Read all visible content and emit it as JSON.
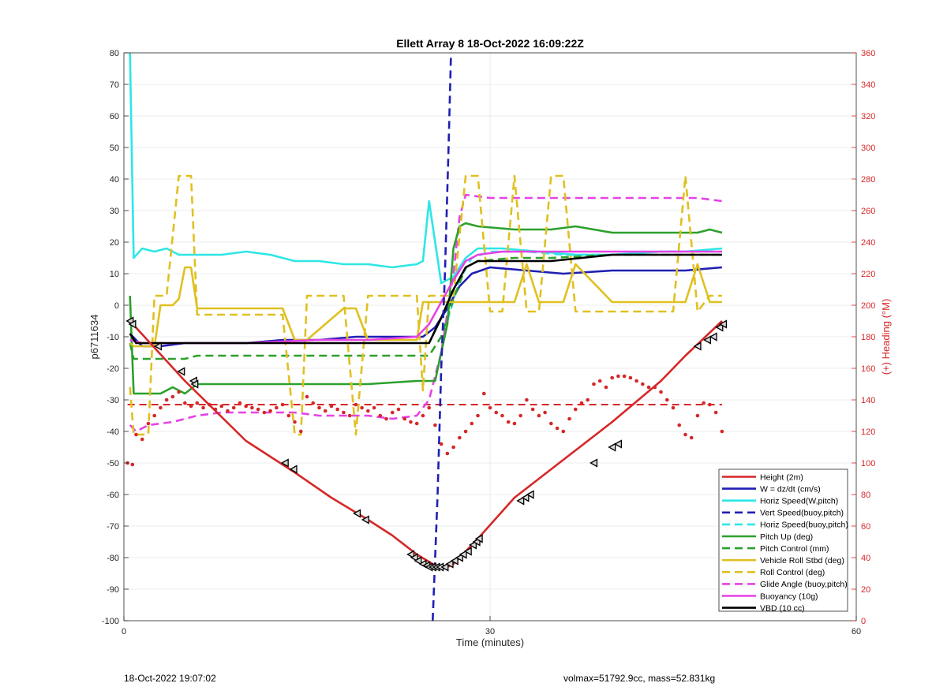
{
  "chart_data": {
    "type": "line",
    "title": "Ellett Array 8 18-Oct-2022 16:09:22Z",
    "xlabel": "Time (minutes)",
    "ylabel": "p6711634",
    "y2label": "(+) Heading (°M)",
    "xlim": [
      0,
      60
    ],
    "ylim": [
      -100,
      80
    ],
    "y2lim": [
      0,
      360
    ],
    "xticks": [
      "0",
      "30",
      "60"
    ],
    "yticks": [
      "80",
      "70",
      "60",
      "50",
      "40",
      "30",
      "20",
      "10",
      "0",
      "-10",
      "-20",
      "-30",
      "-40",
      "-50",
      "-60",
      "-70",
      "-80",
      "-90",
      "-100"
    ],
    "y2ticks": [
      "360",
      "340",
      "320",
      "300",
      "280",
      "260",
      "240",
      "220",
      "200",
      "180",
      "160",
      "140",
      "120",
      "100",
      "80",
      "60",
      "40",
      "20",
      "0"
    ],
    "grid": true,
    "legend_position": "bottom-right",
    "series": [
      {
        "name": "Height (2m)",
        "color": "#d62728",
        "style": "solid",
        "x": [
          0.5,
          5,
          10,
          14,
          17,
          20,
          22,
          24,
          25.5,
          26.5,
          27,
          27.5,
          28,
          29,
          32,
          36,
          40,
          44,
          46,
          49
        ],
        "y": [
          -5,
          -24,
          -43,
          -53,
          -61,
          -68,
          -73,
          -79,
          -82.5,
          -83,
          -82,
          -80,
          -78,
          -74,
          -61,
          -49,
          -37,
          -24,
          -16,
          -5
        ],
        "markers_x": [
          0.5,
          0.7,
          2.8,
          4.7,
          5.7,
          5.8,
          13.2,
          13.9,
          19.1,
          19.8,
          23.5,
          23.8,
          24.1,
          24.5,
          24.8,
          25.0,
          25.3,
          25.6,
          25.9,
          26.3,
          26.7,
          27.1,
          27.5,
          27.8,
          28.2,
          28.6,
          28.9,
          29.1,
          32.5,
          32.9,
          33.3,
          38.5,
          40.0,
          40.5,
          47.0,
          47.8,
          48.3,
          48.8,
          49.1
        ],
        "markers_y": [
          -5,
          -6,
          -13,
          -21,
          -24,
          -25,
          -50,
          -52,
          -66,
          -68,
          -79,
          -80,
          -81,
          -82,
          -82.5,
          -83,
          -83,
          -83,
          -83,
          -83,
          -82,
          -81,
          -80,
          -79,
          -78,
          -76,
          -75,
          -74,
          -62,
          -61,
          -60,
          -50,
          -45,
          -44,
          -13,
          -11,
          -10,
          -7,
          -6
        ]
      },
      {
        "name": "W = dz/dt (cm/s)",
        "color": "#1f1fb4",
        "style": "solid",
        "x": [
          0.5,
          1.5,
          3,
          5,
          7,
          10,
          13,
          16,
          19,
          22,
          24.5,
          25.5,
          26.5,
          27.5,
          28.5,
          30,
          33,
          36,
          40,
          44,
          46,
          49
        ],
        "y": [
          -9,
          -13,
          -13,
          -12,
          -12,
          -12,
          -11,
          -11,
          -10,
          -10,
          -10,
          -7,
          -1,
          6,
          10,
          12,
          11,
          10,
          11,
          11,
          11,
          12
        ]
      },
      {
        "name": "Horiz Speed(W,pitch)",
        "color": "#2ee6e6",
        "style": "solid",
        "x": [
          0.5,
          0.8,
          1.5,
          2.5,
          3.5,
          4.5,
          6,
          8,
          10,
          12,
          14,
          16,
          18,
          20,
          22,
          24,
          24.5,
          25,
          25.5,
          26,
          27,
          28,
          29,
          31,
          34,
          37,
          40,
          44,
          46,
          49
        ],
        "y": [
          80,
          15,
          18,
          17,
          18,
          16,
          16,
          16,
          17,
          16,
          14,
          14,
          13,
          13,
          12,
          13,
          14,
          33,
          20,
          7,
          9,
          15,
          18,
          18,
          17,
          16,
          16,
          17,
          17,
          18
        ]
      },
      {
        "name": "Vert Speed(buoy,pitch)",
        "color": "#1f1fb4",
        "style": "dashed",
        "x": [
          25.3,
          25.7,
          26.0,
          26.3,
          26.6,
          26.8
        ],
        "y": [
          -100,
          -60,
          -20,
          10,
          50,
          80
        ]
      },
      {
        "name": "Horiz Speed(buoy,pitch)",
        "color": "#2ee6e6",
        "style": "dashed",
        "x": [
          26.5,
          27.5,
          28.5,
          30,
          33,
          36,
          40,
          44,
          46,
          49
        ],
        "y": [
          -5,
          8,
          15,
          17,
          17,
          16,
          16,
          17,
          17,
          17
        ]
      },
      {
        "name": "Pitch Up (deg)",
        "color": "#2ca02c",
        "style": "solid",
        "x": [
          0.5,
          0.8,
          1.5,
          3,
          4,
          5,
          6,
          8,
          12,
          16,
          20,
          24,
          24.5,
          25.5,
          26.5,
          27,
          27.5,
          28,
          29,
          32,
          35,
          37,
          40,
          44,
          47,
          48,
          49
        ],
        "y": [
          3,
          -28,
          -28,
          -28,
          -26,
          -28,
          -25,
          -25,
          -25,
          -25,
          -25,
          -24,
          -24,
          -24,
          -6,
          18,
          25,
          26,
          25,
          24,
          24,
          25,
          23,
          23,
          23,
          24,
          23
        ]
      },
      {
        "name": "Pitch Control (mm)",
        "color": "#2ca02c",
        "style": "dashed",
        "x": [
          0.5,
          0.8,
          4,
          5,
          6,
          24,
          25,
          26,
          27,
          28,
          29,
          32,
          35,
          40,
          44,
          47,
          49
        ],
        "y": [
          -12,
          -17,
          -17,
          -17,
          -16,
          -16,
          -16,
          -10,
          2,
          12,
          14,
          15,
          15,
          16,
          16,
          16,
          16
        ]
      },
      {
        "name": "Vehicle Roll Stbd (deg)",
        "color": "#e0c020",
        "style": "solid",
        "x": [
          0.5,
          0.8,
          2.5,
          3,
          4,
          4.5,
          5,
          5.5,
          6,
          10,
          13,
          14,
          15,
          18,
          19,
          20,
          23,
          24,
          24.5,
          25,
          26,
          27,
          28,
          29,
          30,
          32,
          33,
          34,
          36,
          37,
          40,
          44,
          45,
          46,
          47,
          48,
          49
        ],
        "y": [
          -12,
          -13,
          -13,
          0,
          0,
          2,
          12,
          12,
          -1,
          -1,
          -1,
          -11,
          -11,
          -1,
          -1,
          -11,
          -11,
          -11,
          1,
          1,
          1,
          1,
          1,
          1,
          1,
          1,
          13,
          1,
          1,
          13,
          1,
          1,
          1,
          1,
          13,
          1,
          1
        ]
      },
      {
        "name": "Roll Control (deg)",
        "color": "#e0c020",
        "style": "dashed",
        "x": [
          0.5,
          0.8,
          2,
          2.5,
          3.5,
          4.5,
          5,
          5.5,
          6,
          10,
          13,
          14,
          14.5,
          15,
          18,
          19,
          20,
          24,
          24.5,
          25,
          26,
          27,
          28,
          29,
          30,
          31,
          32,
          33,
          34,
          35,
          36,
          37,
          40,
          44,
          45,
          46,
          47,
          48,
          49
        ],
        "y": [
          -26,
          -41,
          -41,
          3,
          3,
          41,
          41,
          41,
          -3,
          -3,
          -3,
          -41,
          -41,
          3,
          3,
          -41,
          3,
          3,
          -27,
          3,
          3,
          3,
          41,
          41,
          -2,
          -2,
          41,
          -2,
          -2,
          41,
          41,
          -2,
          -2,
          -2,
          -2,
          41,
          -2,
          3,
          3
        ]
      },
      {
        "name": "Glide Angle (buoy,pitch)",
        "color": "#e642e6",
        "style": "dashed",
        "x": [
          0.5,
          1,
          2,
          4,
          6,
          8,
          10,
          12,
          14,
          16,
          18,
          20,
          22,
          24,
          25,
          26,
          27,
          27.5,
          28,
          30,
          33,
          35,
          37,
          40,
          44,
          47,
          49
        ],
        "y": [
          -38,
          -40,
          -38,
          -37,
          -35,
          -34,
          -34,
          -34,
          -34,
          -35,
          -35,
          -35,
          -36,
          -35,
          -30,
          -15,
          10,
          28,
          35,
          34,
          34,
          34,
          34,
          34,
          34,
          34,
          33
        ]
      },
      {
        "name": "Buoyancy (10g)",
        "color": "#e642e6",
        "style": "solid",
        "x": [
          0.5,
          1.5,
          5,
          10,
          16,
          20,
          24,
          25,
          26,
          27,
          28,
          29,
          31,
          35,
          40,
          44,
          47,
          49
        ],
        "y": [
          -11,
          -12,
          -12,
          -12,
          -11,
          -11,
          -10,
          -6,
          1,
          8,
          14,
          16,
          17,
          17,
          17,
          17,
          17,
          17
        ]
      },
      {
        "name": "VBD (10 cc)",
        "color": "#000000",
        "style": "solid",
        "x": [
          0.5,
          1,
          2,
          5,
          10,
          16,
          20,
          24,
          25,
          26,
          27,
          28,
          29,
          31,
          35,
          40,
          44,
          47,
          49
        ],
        "y": [
          -9,
          -12,
          -12,
          -12,
          -12,
          -12,
          -12,
          -12,
          -12,
          -4,
          5,
          12,
          14,
          14,
          14,
          16,
          16,
          16,
          16
        ]
      }
    ],
    "heading": {
      "color": "#d62728",
      "mean": 137,
      "x": [
        0.3,
        0.7,
        1,
        1.5,
        2,
        2.5,
        3,
        3.5,
        4,
        4.5,
        5,
        5.5,
        6,
        6.5,
        7,
        7.5,
        8,
        8.5,
        9,
        9.5,
        10,
        10.5,
        11,
        11.5,
        12,
        12.5,
        13,
        13.5,
        14,
        14.5,
        15,
        15.5,
        16,
        16.5,
        17,
        17.5,
        18,
        18.5,
        19,
        19.5,
        20,
        20.5,
        21,
        21.5,
        22,
        22.5,
        23,
        23.5,
        24,
        24.5,
        25,
        25.5,
        26,
        26.5,
        27,
        27.5,
        28,
        28.5,
        29,
        29.5,
        30,
        30.5,
        31,
        31.5,
        32,
        32.5,
        33,
        33.5,
        34,
        34.5,
        35,
        35.5,
        36,
        36.5,
        37,
        37.5,
        38,
        38.5,
        39,
        39.5,
        40,
        40.5,
        41,
        41.5,
        42,
        42.5,
        43,
        43.5,
        44,
        44.5,
        45,
        45.5,
        46,
        46.5,
        47,
        47.5,
        48,
        48.5,
        49
      ],
      "y": [
        100,
        99,
        118,
        115,
        125,
        130,
        135,
        140,
        142,
        145,
        138,
        136,
        138,
        135,
        137,
        134,
        136,
        133,
        135,
        138,
        136,
        135,
        134,
        132,
        133,
        135,
        137,
        130,
        126,
        120,
        142,
        138,
        135,
        133,
        136,
        134,
        132,
        130,
        137,
        135,
        133,
        135,
        130,
        128,
        132,
        134,
        128,
        126,
        125,
        130,
        135,
        124,
        112,
        106,
        110,
        116,
        120,
        125,
        130,
        144,
        135,
        132,
        130,
        126,
        125,
        130,
        140,
        134,
        130,
        132,
        125,
        122,
        120,
        128,
        134,
        138,
        140,
        150,
        152,
        148,
        154,
        155,
        155,
        154,
        152,
        150,
        148,
        148,
        145,
        140,
        135,
        124,
        118,
        116,
        130,
        138,
        137,
        132,
        120
      ]
    }
  },
  "footer": {
    "left": "18-Oct-2022 19:07:02",
    "right": "volmax=51792.9cc, mass=52.831kg"
  }
}
